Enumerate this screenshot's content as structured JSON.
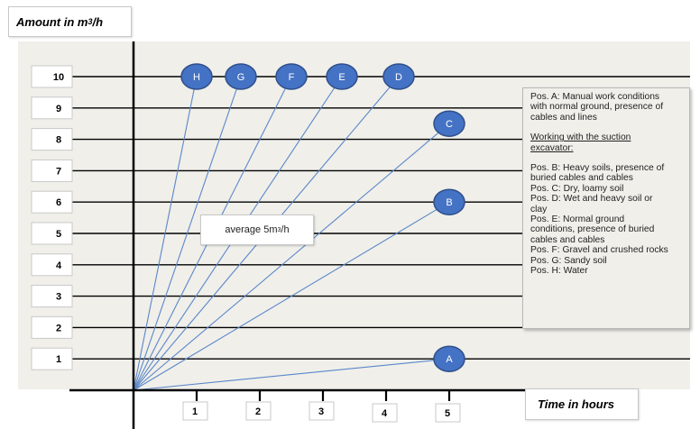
{
  "chart_data": {
    "type": "line",
    "ylabel_prefix": "Amount in m",
    "ylabel_sup": "3",
    "ylabel_suffix": "/h",
    "xlabel": "Time in hours",
    "x_ticks": [
      1,
      2,
      3,
      4,
      5
    ],
    "y_ticks": [
      1,
      2,
      3,
      4,
      5,
      6,
      7,
      8,
      9,
      10
    ],
    "xlim": [
      0,
      5
    ],
    "ylim": [
      0,
      10
    ],
    "series": [
      {
        "name": "A",
        "x": [
          0,
          5
        ],
        "y": [
          0,
          1
        ]
      },
      {
        "name": "B",
        "x": [
          0,
          5
        ],
        "y": [
          0,
          6
        ]
      },
      {
        "name": "C",
        "x": [
          0,
          5
        ],
        "y": [
          0,
          8.5
        ]
      },
      {
        "name": "D",
        "x": [
          0,
          4.2
        ],
        "y": [
          0,
          10
        ]
      },
      {
        "name": "E",
        "x": [
          0,
          3.3
        ],
        "y": [
          0,
          10
        ]
      },
      {
        "name": "F",
        "x": [
          0,
          2.5
        ],
        "y": [
          0,
          10
        ]
      },
      {
        "name": "G",
        "x": [
          0,
          1.7
        ],
        "y": [
          0,
          10
        ]
      },
      {
        "name": "H",
        "x": [
          0,
          1.0
        ],
        "y": [
          0,
          10
        ]
      }
    ],
    "annotation": {
      "prefix": "average 5m",
      "sup": "3",
      "suffix": "/h"
    },
    "legend": {
      "position": "right",
      "lines": [
        "Pos. A: Manual work conditions",
        "with normal ground, presence of",
        "cables and lines",
        "",
        "Working with the suction",
        "excavator:",
        "",
        "Pos. B: Heavy soils, presence of",
        "buried cables and cables",
        "Pos. C: Dry, loamy soil",
        "Pos. D: Wet and heavy soil or",
        "clay",
        "Pos. E: Normal ground",
        "conditions, presence of buried",
        "cables and cables",
        "Pos. F: Gravel and crushed rocks",
        "Pos. G: Sandy soil",
        "Pos. H: Water"
      ]
    },
    "grid": true,
    "colors": {
      "plot_background": "#f0efea",
      "line": "#5b87c9",
      "marker_fill": "#4472c4",
      "marker_stroke": "#2f4f8a",
      "marker_text": "#ffffff",
      "axis": "#000000"
    }
  }
}
